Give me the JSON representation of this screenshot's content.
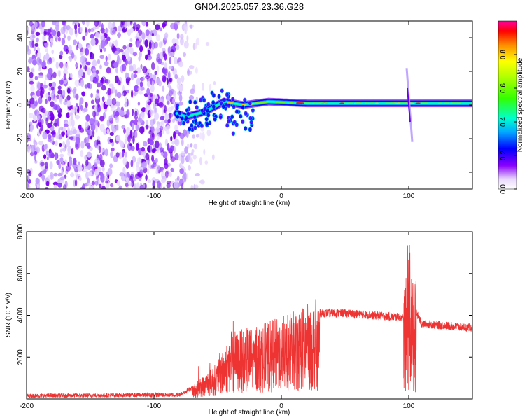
{
  "title": "GN04.2025.057.23.36.G28",
  "chart_data": [
    {
      "type": "heatmap",
      "xlabel": "Height of straight line (km)",
      "ylabel": "Frequency (Hz)",
      "xlim": [
        -200,
        150
      ],
      "ylim": [
        -50,
        50
      ],
      "xticks": [
        -200,
        -100,
        0,
        100
      ],
      "yticks": [
        -40,
        -20,
        0,
        20,
        40
      ],
      "colorbar": {
        "label": "Normalized spectral amplitude",
        "range": [
          0,
          1
        ],
        "ticks": [
          "0.0",
          "0.2",
          "0.4",
          "0.6",
          "0.8"
        ]
      },
      "noise_region": {
        "x": [
          -200,
          -65
        ],
        "y": [
          -50,
          50
        ]
      },
      "signal_track": [
        {
          "x": -82,
          "y": -5
        },
        {
          "x": -75,
          "y": -7
        },
        {
          "x": -60,
          "y": -4
        },
        {
          "x": -45,
          "y": 2
        },
        {
          "x": -30,
          "y": 0
        },
        {
          "x": -10,
          "y": 2
        },
        {
          "x": 20,
          "y": 1
        },
        {
          "x": 60,
          "y": 1
        },
        {
          "x": 80,
          "y": 1
        },
        {
          "x": 100,
          "y": 1
        },
        {
          "x": 150,
          "y": 1
        }
      ],
      "spike": {
        "x": 100,
        "y": [
          -22,
          22
        ]
      }
    },
    {
      "type": "line",
      "xlabel": "Height of straight line (km)",
      "ylabel": "SNR (10 * v/v)",
      "xlim": [
        -200,
        150
      ],
      "ylim": [
        0,
        8000
      ],
      "xticks": [
        -200,
        -100,
        0,
        100
      ],
      "yticks": [
        2000,
        4000,
        6000,
        8000
      ],
      "series": [
        {
          "color": "#ee3333",
          "envelope": [
            {
              "x": -200,
              "y": 150
            },
            {
              "x": -80,
              "y": 200
            },
            {
              "x": -68,
              "y": 600
            },
            {
              "x": -50,
              "y": 1500
            },
            {
              "x": -40,
              "y": 2600
            },
            {
              "x": -30,
              "y": 2800
            },
            {
              "x": -20,
              "y": 2900
            },
            {
              "x": -10,
              "y": 3100
            },
            {
              "x": 0,
              "y": 3300
            },
            {
              "x": 10,
              "y": 3500
            },
            {
              "x": 20,
              "y": 3800
            },
            {
              "x": 30,
              "y": 4100
            },
            {
              "x": 50,
              "y": 4100
            },
            {
              "x": 70,
              "y": 4000
            },
            {
              "x": 95,
              "y": 3900
            },
            {
              "x": 100,
              "y": 3000
            },
            {
              "x": 103,
              "y": 4500
            },
            {
              "x": 110,
              "y": 3600
            },
            {
              "x": 150,
              "y": 3400
            }
          ]
        }
      ]
    }
  ]
}
